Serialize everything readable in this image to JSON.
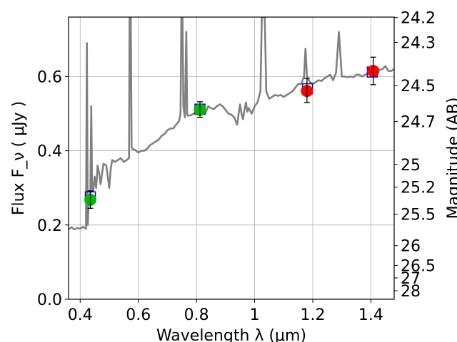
{
  "chart_data": {
    "type": "scatter",
    "title": "",
    "xlabel": "Wavelength  λ (μm)",
    "ylabel": "Flux  F_ν  ( μJy )",
    "ylabel_right": "Magnitude (AB)",
    "xlim": [
      0.36,
      1.48
    ],
    "ylim": [
      0.0,
      0.76
    ],
    "grid": true,
    "legend": "none",
    "x_ticks": [
      {
        "value": 0.4,
        "label": "0.4"
      },
      {
        "value": 0.6,
        "label": "0.6"
      },
      {
        "value": 0.8,
        "label": "0.8"
      },
      {
        "value": 1.0,
        "label": "1"
      },
      {
        "value": 1.2,
        "label": "1.2"
      },
      {
        "value": 1.4,
        "label": "1.4"
      }
    ],
    "y_ticks": [
      {
        "value": 0.0,
        "label": "0.0"
      },
      {
        "value": 0.2,
        "label": "0.2"
      },
      {
        "value": 0.4,
        "label": "0.4"
      },
      {
        "value": 0.6,
        "label": "0.6"
      }
    ],
    "right_ticks": [
      {
        "mag": 24.2,
        "label": "24.2"
      },
      {
        "mag": 24.3,
        "label": "24.3"
      },
      {
        "mag": 24.5,
        "label": "24.5"
      },
      {
        "mag": 24.7,
        "label": "24.7"
      },
      {
        "mag": 25.0,
        "label": "25"
      },
      {
        "mag": 25.2,
        "label": "25.2"
      },
      {
        "mag": 25.5,
        "label": "25.5"
      },
      {
        "mag": 26.0,
        "label": "26"
      },
      {
        "mag": 26.5,
        "label": "26.5"
      },
      {
        "mag": 27.0,
        "label": "27"
      },
      {
        "mag": 28.0,
        "label": "28"
      }
    ],
    "model_spectrum": {
      "color": "#808080",
      "points": [
        [
          0.36,
          0.188
        ],
        [
          0.37,
          0.194
        ],
        [
          0.38,
          0.188
        ],
        [
          0.39,
          0.192
        ],
        [
          0.4,
          0.19
        ],
        [
          0.41,
          0.195
        ],
        [
          0.42,
          0.19
        ],
        [
          0.423,
          0.69
        ],
        [
          0.426,
          0.2
        ],
        [
          0.43,
          0.275
        ],
        [
          0.435,
          0.285
        ],
        [
          0.438,
          0.52
        ],
        [
          0.441,
          0.3
        ],
        [
          0.445,
          0.29
        ],
        [
          0.45,
          0.33
        ],
        [
          0.455,
          0.3
        ],
        [
          0.46,
          0.36
        ],
        [
          0.465,
          0.34
        ],
        [
          0.47,
          0.31
        ],
        [
          0.48,
          0.365
        ],
        [
          0.49,
          0.36
        ],
        [
          0.5,
          0.3
        ],
        [
          0.505,
          0.35
        ],
        [
          0.51,
          0.375
        ],
        [
          0.52,
          0.37
        ],
        [
          0.53,
          0.375
        ],
        [
          0.54,
          0.38
        ],
        [
          0.55,
          0.37
        ],
        [
          0.56,
          0.375
        ],
        [
          0.568,
          0.38
        ],
        [
          0.57,
          0.76
        ],
        [
          0.574,
          0.76
        ],
        [
          0.577,
          0.41
        ],
        [
          0.58,
          0.405
        ],
        [
          0.59,
          0.402
        ],
        [
          0.6,
          0.395
        ],
        [
          0.61,
          0.4
        ],
        [
          0.62,
          0.4
        ],
        [
          0.63,
          0.405
        ],
        [
          0.64,
          0.415
        ],
        [
          0.65,
          0.42
        ],
        [
          0.66,
          0.425
        ],
        [
          0.67,
          0.43
        ],
        [
          0.68,
          0.44
        ],
        [
          0.69,
          0.445
        ],
        [
          0.7,
          0.455
        ],
        [
          0.71,
          0.46
        ],
        [
          0.72,
          0.46
        ],
        [
          0.73,
          0.47
        ],
        [
          0.74,
          0.48
        ],
        [
          0.745,
          0.5
        ],
        [
          0.748,
          0.76
        ],
        [
          0.752,
          0.76
        ],
        [
          0.755,
          0.52
        ],
        [
          0.76,
          0.49
        ],
        [
          0.765,
          0.72
        ],
        [
          0.768,
          0.5
        ],
        [
          0.77,
          0.495
        ],
        [
          0.78,
          0.495
        ],
        [
          0.79,
          0.5
        ],
        [
          0.8,
          0.505
        ],
        [
          0.81,
          0.51
        ],
        [
          0.82,
          0.505
        ],
        [
          0.83,
          0.5
        ],
        [
          0.84,
          0.52
        ],
        [
          0.85,
          0.515
        ],
        [
          0.86,
          0.512
        ],
        [
          0.87,
          0.52
        ],
        [
          0.88,
          0.525
        ],
        [
          0.89,
          0.52
        ],
        [
          0.9,
          0.51
        ],
        [
          0.91,
          0.5
        ],
        [
          0.92,
          0.497
        ],
        [
          0.93,
          0.49
        ],
        [
          0.94,
          0.47
        ],
        [
          0.945,
          0.5
        ],
        [
          0.95,
          0.525
        ],
        [
          0.955,
          0.5
        ],
        [
          0.96,
          0.485
        ],
        [
          0.965,
          0.51
        ],
        [
          0.97,
          0.53
        ],
        [
          0.975,
          0.505
        ],
        [
          0.98,
          0.515
        ],
        [
          0.99,
          0.5
        ],
        [
          1.0,
          0.52
        ],
        [
          1.01,
          0.53
        ],
        [
          1.015,
          0.545
        ],
        [
          1.02,
          0.56
        ],
        [
          1.025,
          0.76
        ],
        [
          1.035,
          0.76
        ],
        [
          1.04,
          0.56
        ],
        [
          1.05,
          0.54
        ],
        [
          1.06,
          0.545
        ],
        [
          1.07,
          0.55
        ],
        [
          1.08,
          0.548
        ],
        [
          1.09,
          0.55
        ],
        [
          1.1,
          0.545
        ],
        [
          1.11,
          0.55
        ],
        [
          1.12,
          0.555
        ],
        [
          1.13,
          0.56
        ],
        [
          1.14,
          0.57
        ],
        [
          1.15,
          0.58
        ],
        [
          1.16,
          0.58
        ],
        [
          1.165,
          0.59
        ],
        [
          1.17,
          0.6
        ],
        [
          1.175,
          0.675
        ],
        [
          1.18,
          0.6
        ],
        [
          1.19,
          0.585
        ],
        [
          1.2,
          0.58
        ],
        [
          1.21,
          0.585
        ],
        [
          1.22,
          0.59
        ],
        [
          1.23,
          0.588
        ],
        [
          1.24,
          0.595
        ],
        [
          1.25,
          0.6
        ],
        [
          1.26,
          0.605
        ],
        [
          1.27,
          0.59
        ],
        [
          1.28,
          0.61
        ],
        [
          1.29,
          0.72
        ],
        [
          1.3,
          0.6
        ],
        [
          1.31,
          0.6
        ],
        [
          1.32,
          0.598
        ],
        [
          1.33,
          0.6
        ],
        [
          1.34,
          0.598
        ],
        [
          1.35,
          0.605
        ],
        [
          1.36,
          0.605
        ],
        [
          1.37,
          0.6
        ],
        [
          1.38,
          0.605
        ],
        [
          1.39,
          0.608
        ],
        [
          1.4,
          0.61
        ],
        [
          1.41,
          0.612
        ],
        [
          1.42,
          0.615
        ],
        [
          1.43,
          0.618
        ],
        [
          1.44,
          0.62
        ],
        [
          1.45,
          0.628
        ],
        [
          1.46,
          0.615
        ],
        [
          1.47,
          0.615
        ],
        [
          1.48,
          0.62
        ]
      ]
    },
    "series": [
      {
        "marker": "square",
        "color": "#0000cc",
        "points": [
          {
            "x": 0.435,
            "y": 0.276
          },
          {
            "x": 0.812,
            "y": 0.512
          },
          {
            "x": 1.182,
            "y": 0.567
          },
          {
            "x": 1.405,
            "y": 0.612
          }
        ]
      },
      {
        "marker": "circle",
        "color": "#00bb00",
        "points": [
          {
            "x": 0.435,
            "y": 0.268,
            "err_low": 0.245,
            "err_high": 0.292
          },
          {
            "x": 0.812,
            "y": 0.51,
            "err_low": 0.49,
            "err_high": 0.532
          }
        ]
      },
      {
        "marker": "circle",
        "color": "#ff0000",
        "points": [
          {
            "x": 1.18,
            "y": 0.561,
            "err_low": 0.53,
            "err_high": 0.595
          },
          {
            "x": 1.408,
            "y": 0.615,
            "err_low": 0.578,
            "err_high": 0.652
          }
        ]
      }
    ]
  }
}
